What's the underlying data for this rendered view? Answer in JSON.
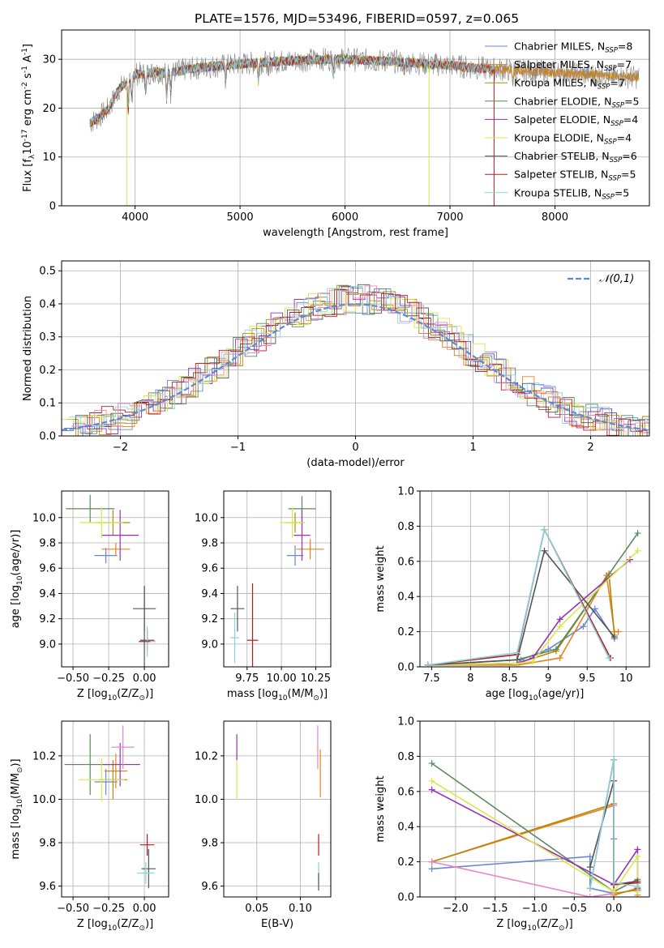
{
  "figure_title": "PLATE=1576, MJD=53496, FIBERID=0597, z=0.065",
  "colors": {
    "Chabrier MILES": "#6a86d6",
    "Salpeter MILES": "#e7831f",
    "Kroupa MILES": "#b8860b",
    "Chabrier ELODIE": "#5a8a5a",
    "Salpeter ELODIE": "#9b2fb5",
    "Kroupa ELODIE": "#d8e84a",
    "Chabrier STELIB": "#555555",
    "Salpeter STELIB": "#c0181c",
    "Kroupa STELIB": "#86d3dd",
    "pink": "#e985c4",
    "data": "#888888",
    "gaussian": "#5b8ad6"
  },
  "chart_data": [
    {
      "id": "spectrum",
      "type": "line",
      "title": "PLATE=1576, MJD=53496, FIBERID=0597, z=0.065",
      "xlabel": "wavelength [Angstrom, rest frame]",
      "ylabel": "Flux [f$_\\lambda$10$^{-17}$ erg cm$^{-2}$ s$^{-1}$ A$^{-1}$]",
      "xlim": [
        3300,
        8900
      ],
      "ylim": [
        0,
        36
      ],
      "xticks": [
        4000,
        5000,
        6000,
        7000,
        8000
      ],
      "yticks": [
        0,
        10,
        20,
        30
      ],
      "legend_position": "top-right",
      "legend": [
        {
          "label": "Chabrier MILES, N",
          "sub": "SSP",
          "tail": "=8"
        },
        {
          "label": "Salpeter MILES, N",
          "sub": "SSP",
          "tail": "=7"
        },
        {
          "label": "Kroupa MILES, N",
          "sub": "SSP",
          "tail": "=7"
        },
        {
          "label": "Chabrier ELODIE, N",
          "sub": "SSP",
          "tail": "=5"
        },
        {
          "label": "Salpeter ELODIE, N",
          "sub": "SSP",
          "tail": "=4"
        },
        {
          "label": "Kroupa ELODIE, N",
          "sub": "SSP",
          "tail": "=4"
        },
        {
          "label": "Chabrier STELIB, N",
          "sub": "SSP",
          "tail": "=6"
        },
        {
          "label": "Salpeter STELIB, N",
          "sub": "SSP",
          "tail": "=5"
        },
        {
          "label": "Kroupa STELIB, N",
          "sub": "SSP",
          "tail": "=5"
        }
      ],
      "continuum": {
        "x": [
          3570,
          3650,
          3700,
          3750,
          3800,
          3850,
          3900,
          3950,
          4000,
          4100,
          4200,
          4300,
          4400,
          4500,
          4700,
          5000,
          5300,
          5600,
          5800,
          6000,
          6200,
          6500,
          6800,
          7000,
          7200,
          7400,
          7600,
          7800,
          8000,
          8200,
          8400,
          8600,
          8800
        ],
        "y": [
          17,
          18,
          19,
          20,
          22,
          24,
          25,
          25,
          27,
          27,
          27.5,
          27,
          27.5,
          28,
          28.5,
          29,
          29.5,
          29.8,
          30,
          30,
          29.8,
          29.5,
          29,
          28.8,
          28.3,
          28,
          27.8,
          27.5,
          27.3,
          27,
          26.8,
          26.5,
          26.3
        ]
      }
    },
    {
      "id": "residuals",
      "type": "line",
      "xlabel": "(data-model)/error",
      "ylabel": "Normed distribution",
      "xlim": [
        -2.5,
        2.5
      ],
      "ylim": [
        0,
        0.53
      ],
      "xticks": [
        -2,
        -1,
        0,
        1,
        2
      ],
      "yticks": [
        0.0,
        0.1,
        0.2,
        0.3,
        0.4,
        0.5
      ],
      "legend": "$\\mathcal{N}(0,1)$",
      "legend_position": "top-right",
      "gaussian": {
        "mean": 0,
        "sigma": 1
      }
    },
    {
      "id": "age_vs_Z",
      "type": "scatter",
      "xlabel": "Z [log$_{10}$($Z/Z_\\odot$)]",
      "ylabel": "age  [log$_{10}$($age/yr$)]",
      "xlim": [
        -0.58,
        0.17
      ],
      "ylim": [
        8.82,
        10.21
      ],
      "xticks": [
        -0.5,
        -0.25,
        0.0
      ],
      "xticklabels": [
        "−0.50",
        "−0.25",
        "0.00"
      ],
      "yticks": [
        9.0,
        9.2,
        9.4,
        9.6,
        9.8,
        10.0
      ],
      "points": [
        {
          "series": "Chabrier MILES",
          "x": -0.27,
          "y": 9.7,
          "xerr": 0.08,
          "yerr": 0.06
        },
        {
          "series": "Salpeter MILES",
          "x": -0.2,
          "y": 9.75,
          "xerr": 0.1,
          "yerr": 0.05
        },
        {
          "series": "Kroupa MILES",
          "x": -0.22,
          "y": 9.96,
          "xerr": 0.12,
          "yerr": 0.1
        },
        {
          "series": "Chabrier ELODIE",
          "x": -0.38,
          "y": 10.07,
          "xerr": 0.17,
          "yerr": 0.11
        },
        {
          "series": "Salpeter ELODIE",
          "x": -0.17,
          "y": 9.86,
          "xerr": 0.13,
          "yerr": 0.2
        },
        {
          "series": "Kroupa ELODIE",
          "x": -0.3,
          "y": 9.96,
          "xerr": 0.15,
          "yerr": 0.12
        },
        {
          "series": "Chabrier STELIB",
          "x": 0.0,
          "y": 9.28,
          "xerr": 0.08,
          "yerr": 0.18
        },
        {
          "series": "Salpeter STELIB",
          "x": 0.02,
          "y": 9.03,
          "xerr": 0.05,
          "yerr": 0.08
        },
        {
          "series": "Kroupa STELIB",
          "x": 0.02,
          "y": 9.02,
          "xerr": 0.06,
          "yerr": 0.12
        },
        {
          "series": "Chabrier STELIB",
          "x": 0.0,
          "y": 9.02,
          "xerr": 0.04,
          "yerr": 0.44
        }
      ]
    },
    {
      "id": "age_vs_mass",
      "type": "scatter",
      "xlabel": "mass [log$_{10}$($M/M_\\odot$)]",
      "ylabel": "",
      "xlim": [
        9.58,
        10.36
      ],
      "ylim": [
        8.82,
        10.21
      ],
      "xticks": [
        9.75,
        10.0,
        10.25
      ],
      "xticklabels": [
        "9.75",
        "10.00",
        "10.25"
      ],
      "yticks": [
        9.0,
        9.2,
        9.4,
        9.6,
        9.8,
        10.0
      ],
      "points": [
        {
          "series": "Chabrier MILES",
          "x": 10.1,
          "y": 9.7,
          "xerr": 0.06,
          "yerr": 0.08
        },
        {
          "series": "Salpeter MILES",
          "x": 10.21,
          "y": 9.75,
          "xerr": 0.1,
          "yerr": 0.08
        },
        {
          "series": "Kroupa MILES",
          "x": 10.1,
          "y": 9.96,
          "xerr": 0.07,
          "yerr": 0.08
        },
        {
          "series": "Chabrier ELODIE",
          "x": 10.15,
          "y": 10.07,
          "xerr": 0.1,
          "yerr": 0.1
        },
        {
          "series": "Salpeter ELODIE",
          "x": 10.15,
          "y": 9.86,
          "xerr": 0.06,
          "yerr": 0.2
        },
        {
          "series": "Kroupa ELODIE",
          "x": 10.08,
          "y": 9.96,
          "xerr": 0.09,
          "yerr": 0.12
        },
        {
          "series": "Chabrier STELIB",
          "x": 9.68,
          "y": 9.28,
          "xerr": 0.05,
          "yerr": 0.18
        },
        {
          "series": "Salpeter STELIB",
          "x": 9.79,
          "y": 9.03,
          "xerr": 0.04,
          "yerr": 0.45
        },
        {
          "series": "Kroupa STELIB",
          "x": 9.66,
          "y": 9.05,
          "xerr": 0.03,
          "yerr": 0.2
        }
      ]
    },
    {
      "id": "weight_vs_age",
      "type": "line",
      "xlabel": "age  [log$_{10}$($age/yr$)]",
      "ylabel": "mass weight",
      "xlim": [
        7.35,
        10.3
      ],
      "ylim": [
        0,
        1.0
      ],
      "xticks": [
        7.5,
        8.0,
        8.5,
        9.0,
        9.5,
        10.0
      ],
      "yticks": [
        0.0,
        0.2,
        0.4,
        0.6,
        0.8,
        1.0
      ],
      "series": [
        {
          "name": "Chabrier MILES",
          "x": [
            7.45,
            8.6,
            8.65,
            9.0,
            9.45,
            9.6,
            9.85
          ],
          "y": [
            0.01,
            0.02,
            0.04,
            0.1,
            0.23,
            0.33,
            0.16
          ]
        },
        {
          "name": "Salpeter MILES",
          "x": [
            7.45,
            8.6,
            9.15,
            9.75,
            9.85,
            9.9
          ],
          "y": [
            0.01,
            0.01,
            0.05,
            0.52,
            0.2,
            0.2
          ]
        },
        {
          "name": "Kroupa MILES",
          "x": [
            7.45,
            8.6,
            9.1,
            9.78,
            9.85
          ],
          "y": [
            0.01,
            0.02,
            0.09,
            0.53,
            0.18
          ]
        },
        {
          "name": "Chabrier ELODIE",
          "x": [
            7.45,
            8.6,
            9.1,
            10.15
          ],
          "y": [
            0.01,
            0.04,
            0.1,
            0.76
          ]
        },
        {
          "name": "Salpeter ELODIE",
          "x": [
            7.45,
            8.6,
            8.8,
            9.15,
            10.05
          ],
          "y": [
            0.01,
            0.02,
            0.05,
            0.27,
            0.61
          ]
        },
        {
          "name": "Kroupa ELODIE",
          "x": [
            7.45,
            8.6,
            8.8,
            9.15,
            10.15
          ],
          "y": [
            0.01,
            0.02,
            0.03,
            0.23,
            0.66
          ]
        },
        {
          "name": "Chabrier STELIB",
          "x": [
            7.45,
            8.6,
            8.95,
            9.85
          ],
          "y": [
            0.01,
            0.04,
            0.66,
            0.17
          ]
        },
        {
          "name": "Salpeter STELIB",
          "x": [
            7.45,
            8.6,
            8.95,
            9.8
          ],
          "y": [
            0.01,
            0.07,
            0.78,
            0.05
          ]
        },
        {
          "name": "Kroupa STELIB",
          "x": [
            7.45,
            8.6,
            8.95,
            9.78
          ],
          "y": [
            0.01,
            0.08,
            0.78,
            0.05
          ]
        }
      ]
    },
    {
      "id": "mass_vs_Z",
      "type": "scatter",
      "xlabel": "Z [log$_{10}$($Z/Z_\\odot$)]",
      "ylabel": "mass [log$_{10}$($M/M_\\odot$)]",
      "xlim": [
        -0.58,
        0.17
      ],
      "ylim": [
        9.55,
        10.36
      ],
      "xticks": [
        -0.5,
        -0.25,
        0.0
      ],
      "xticklabels": [
        "−0.50",
        "−0.25",
        "0.00"
      ],
      "yticks": [
        9.6,
        9.8,
        10.0,
        10.2
      ],
      "points": [
        {
          "series": "Chabrier MILES",
          "x": -0.27,
          "y": 10.08,
          "xerr": 0.08,
          "yerr": 0.06
        },
        {
          "series": "Salpeter MILES",
          "x": -0.2,
          "y": 10.13,
          "xerr": 0.08,
          "yerr": 0.08
        },
        {
          "series": "Kroupa MILES",
          "x": -0.22,
          "y": 10.09,
          "xerr": 0.1,
          "yerr": 0.09
        },
        {
          "series": "Chabrier ELODIE",
          "x": -0.38,
          "y": 10.16,
          "xerr": 0.18,
          "yerr": 0.14
        },
        {
          "series": "Salpeter ELODIE",
          "x": -0.17,
          "y": 10.16,
          "xerr": 0.14,
          "yerr": 0.1
        },
        {
          "series": "Kroupa ELODIE",
          "x": -0.3,
          "y": 10.09,
          "xerr": 0.16,
          "yerr": 0.1
        },
        {
          "series": "Chabrier STELIB",
          "x": 0.03,
          "y": 9.68,
          "xerr": 0.05,
          "yerr": 0.09
        },
        {
          "series": "Salpeter STELIB",
          "x": 0.02,
          "y": 9.79,
          "xerr": 0.05,
          "yerr": 0.05
        },
        {
          "series": "Kroupa STELIB",
          "x": 0.01,
          "y": 9.66,
          "xerr": 0.06,
          "yerr": 0.05
        },
        {
          "series": "pink",
          "x": -0.15,
          "y": 10.24,
          "xerr": 0.08,
          "yerr": 0.1
        }
      ]
    },
    {
      "id": "mass_vs_EBV",
      "type": "scatter",
      "xlabel": "E(B-V)",
      "ylabel": "",
      "xlim": [
        0.012,
        0.135
      ],
      "ylim": [
        9.55,
        10.36
      ],
      "xticks": [
        0.05,
        0.1
      ],
      "xticklabels": [
        "0.05",
        "0.10"
      ],
      "yticks": [
        9.6,
        9.8,
        10.0,
        10.2
      ],
      "points": [
        {
          "series": "Kroupa ELODIE",
          "x": 0.027,
          "y": 10.09,
          "xerr": 0,
          "yerr": 0.09
        },
        {
          "series": "Salpeter ELODIE",
          "x": 0.027,
          "y": 10.24,
          "xerr": 0,
          "yerr": 0.06
        },
        {
          "series": "pink",
          "x": 0.12,
          "y": 10.24,
          "xerr": 0,
          "yerr": 0.1
        },
        {
          "series": "Salpeter MILES",
          "x": 0.123,
          "y": 10.12,
          "xerr": 0,
          "yerr": 0.11
        },
        {
          "series": "Salpeter STELIB",
          "x": 0.121,
          "y": 9.79,
          "xerr": 0,
          "yerr": 0.05
        },
        {
          "series": "Kroupa STELIB",
          "x": 0.121,
          "y": 9.66,
          "xerr": 0,
          "yerr": 0.05
        },
        {
          "series": "Chabrier STELIB",
          "x": 0.121,
          "y": 9.62,
          "xerr": 0,
          "yerr": 0.04
        }
      ]
    },
    {
      "id": "weight_vs_Z",
      "type": "line",
      "xlabel": "Z [log$_{10}$($Z/Z_\\odot$)]",
      "ylabel": "mass weight",
      "xlim": [
        -2.45,
        0.45
      ],
      "ylim": [
        0,
        1.0
      ],
      "xticks": [
        -2.0,
        -1.5,
        -1.0,
        -0.5,
        0.0
      ],
      "xticklabels": [
        "−2.0",
        "−1.5",
        "−1.0",
        "−0.5",
        "0.0"
      ],
      "yticks": [
        0.0,
        0.2,
        0.4,
        0.6,
        0.8,
        1.0
      ],
      "series": [
        {
          "name": "Chabrier MILES",
          "x": [
            -2.3,
            -0.3,
            -0.3,
            0.0,
            0.0
          ],
          "y": [
            0.16,
            0.23,
            0.05,
            0.02,
            0.33
          ]
        },
        {
          "name": "Salpeter MILES",
          "x": [
            -2.3,
            0.0,
            0.0,
            0.3,
            0.3
          ],
          "y": [
            0.2,
            0.52,
            0.01,
            0.05,
            0.01
          ]
        },
        {
          "name": "Kroupa MILES",
          "x": [
            -2.3,
            0.0,
            0.0,
            0.3
          ],
          "y": [
            0.2,
            0.53,
            0.02,
            0.04
          ]
        },
        {
          "name": "pink",
          "x": [
            -2.3,
            -0.3,
            0.0,
            0.0
          ],
          "y": [
            0.2,
            0.0,
            0.02,
            0.52
          ]
        },
        {
          "name": "Chabrier ELODIE",
          "x": [
            -2.3,
            0.0,
            0.3,
            0.3
          ],
          "y": [
            0.76,
            0.03,
            0.1,
            0.04
          ]
        },
        {
          "name": "Salpeter ELODIE",
          "x": [
            -2.3,
            0.0,
            0.3,
            0.3
          ],
          "y": [
            0.61,
            0.07,
            0.27,
            0.05
          ]
        },
        {
          "name": "Kroupa ELODIE",
          "x": [
            -2.3,
            0.0,
            0.3,
            0.3
          ],
          "y": [
            0.66,
            0.03,
            0.23,
            0.03
          ]
        },
        {
          "name": "Chabrier STELIB",
          "x": [
            -0.3,
            0.0,
            0.0,
            0.3
          ],
          "y": [
            0.17,
            0.66,
            0.07,
            0.09
          ]
        },
        {
          "name": "Salpeter STELIB",
          "x": [
            -0.3,
            0.0,
            0.0,
            0.3
          ],
          "y": [
            0.05,
            0.78,
            0.07,
            0.08
          ]
        },
        {
          "name": "Kroupa STELIB",
          "x": [
            -0.3,
            0.0,
            0.0,
            0.3
          ],
          "y": [
            0.05,
            0.78,
            0.08,
            0.06
          ]
        }
      ]
    }
  ]
}
